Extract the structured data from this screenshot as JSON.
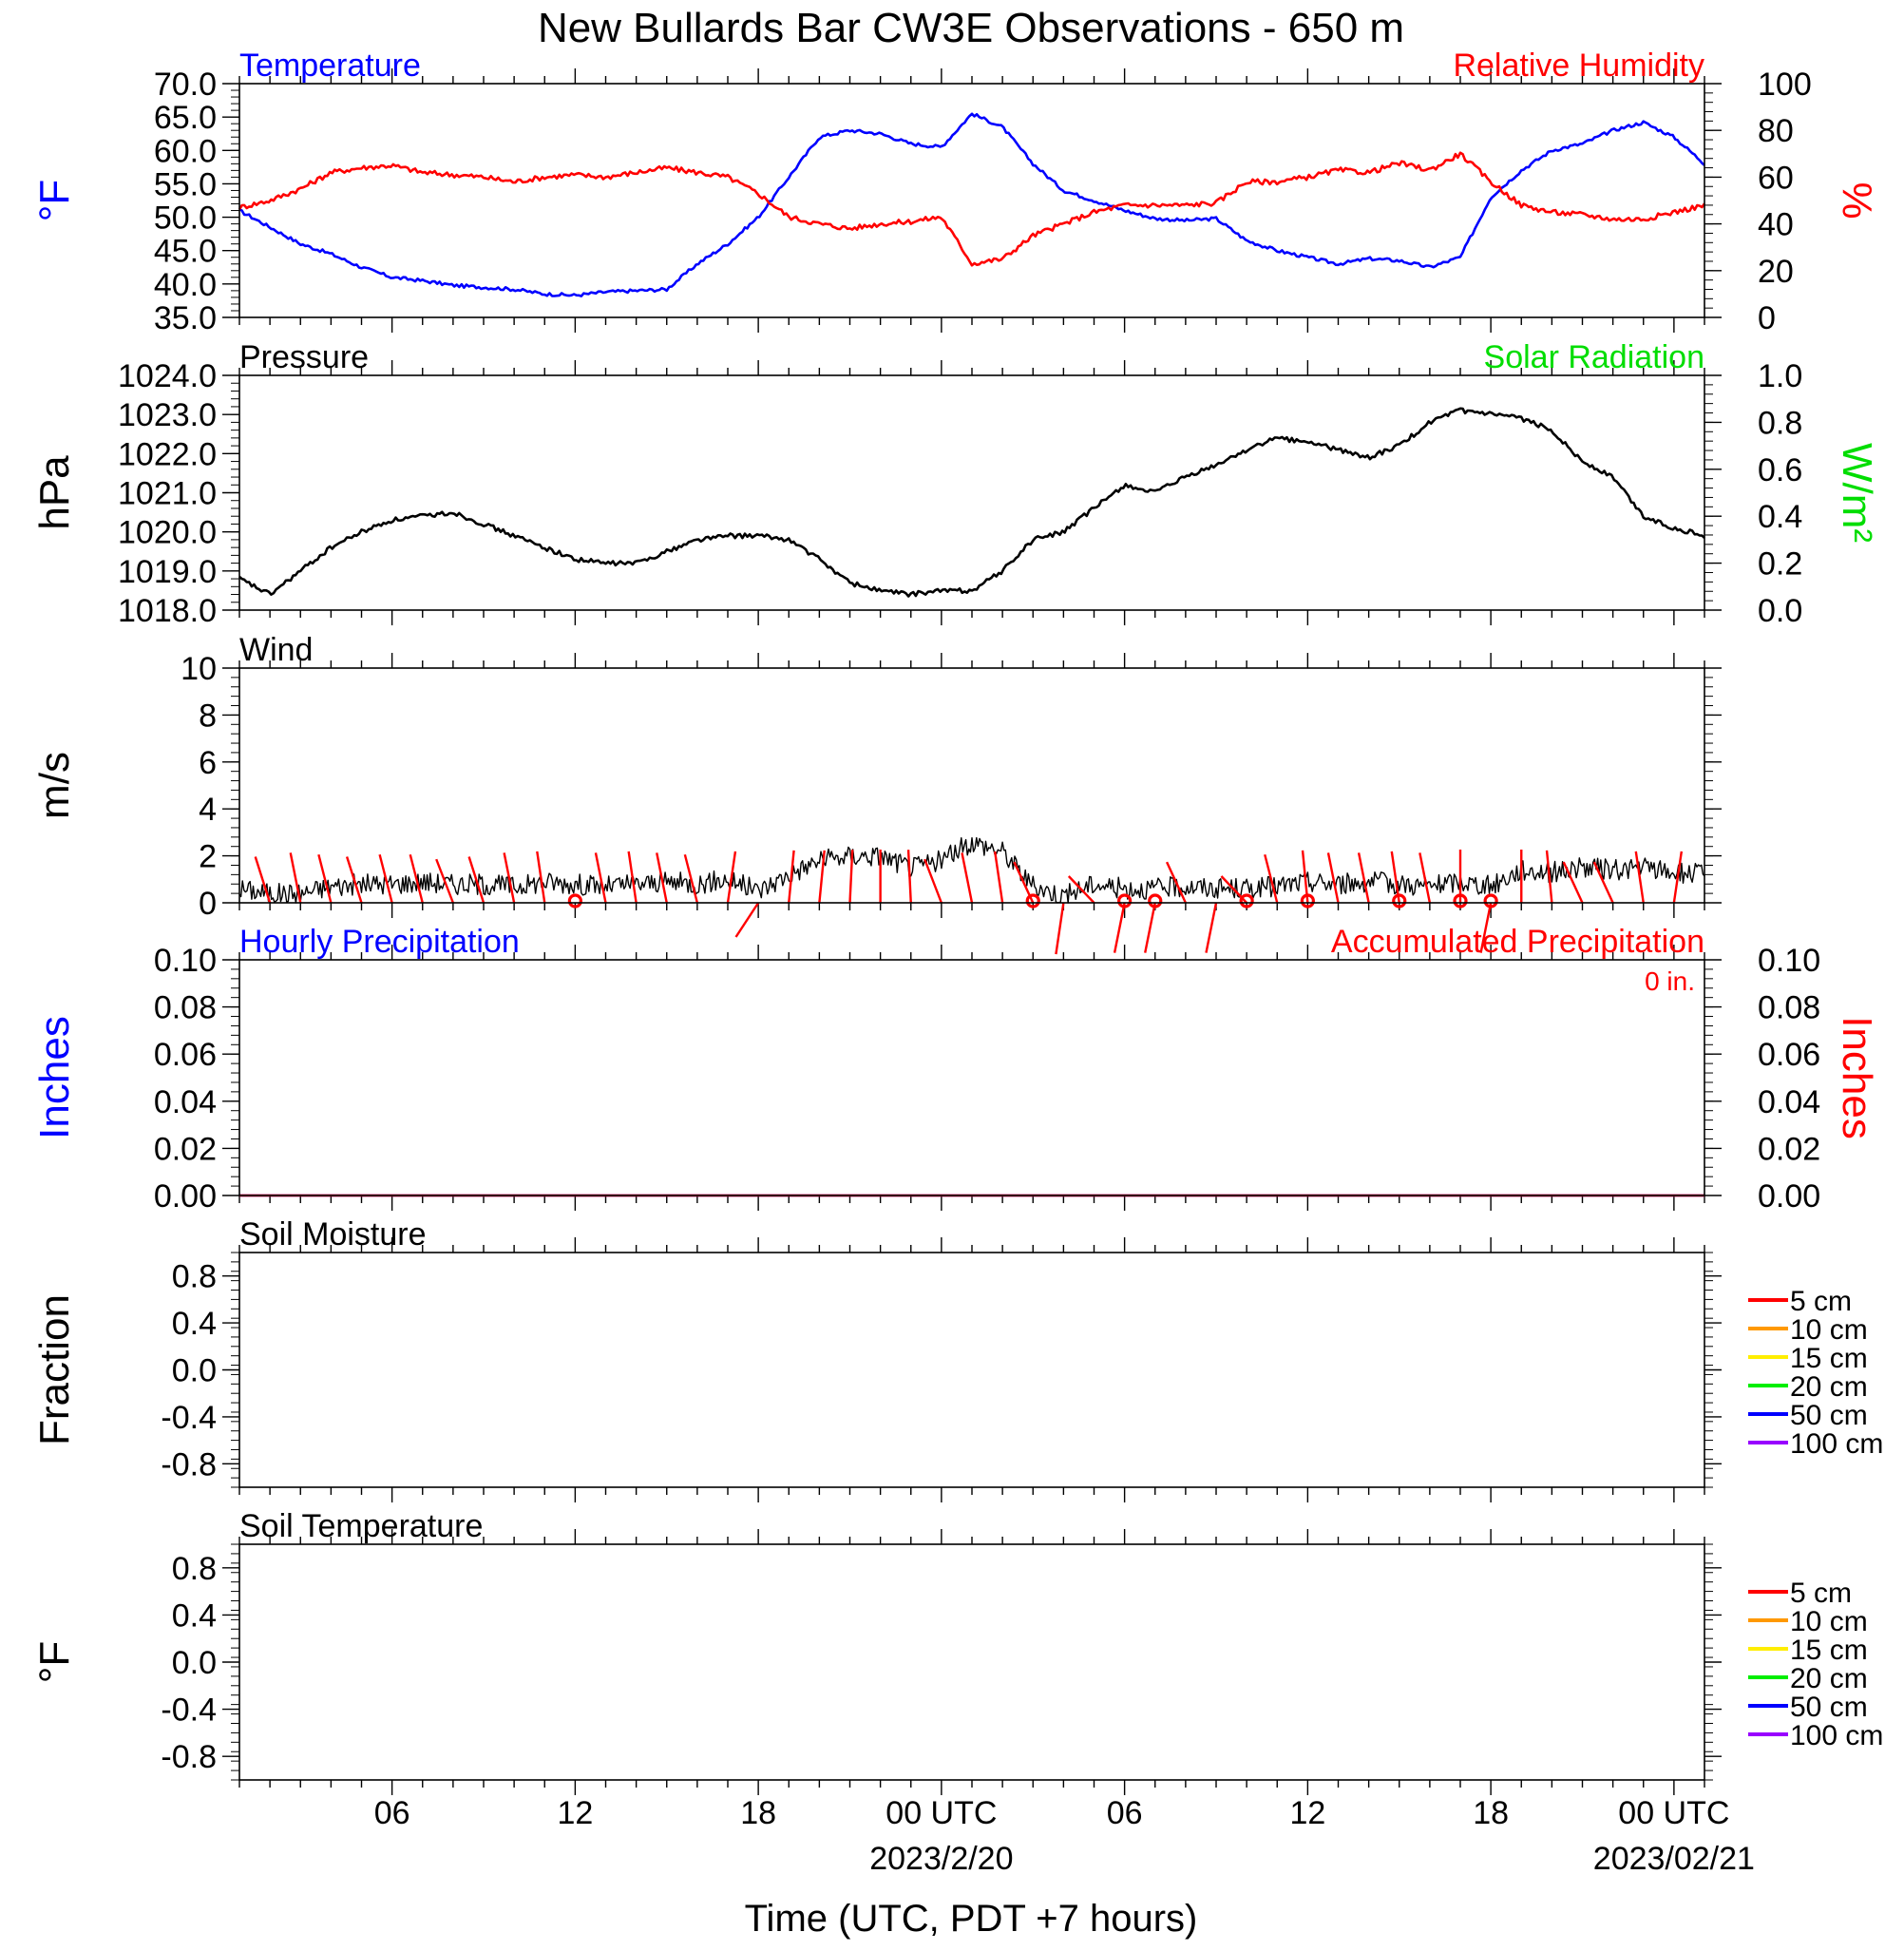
{
  "title": "New Bullards Bar CW3E Observations - 650 m",
  "xlabel": "Time (UTC, PDT +7 hours)",
  "x_ticks": [
    {
      "hour": 6,
      "label": "06"
    },
    {
      "hour": 12,
      "label": "12"
    },
    {
      "hour": 18,
      "label": "18"
    },
    {
      "hour": 24,
      "label": "00 UTC",
      "sub": "2023/2/20"
    },
    {
      "hour": 30,
      "label": "06"
    },
    {
      "hour": 36,
      "label": "12"
    },
    {
      "hour": 42,
      "label": "18"
    },
    {
      "hour": 48,
      "label": "00 UTC",
      "sub": "2023/02/21"
    }
  ],
  "x_range_hours": [
    1,
    49
  ],
  "colors": {
    "temperature": "#0000ff",
    "humidity": "#ff0000",
    "pressure": "#000000",
    "solar": "#00dd00",
    "wind": "#000000",
    "barb": "#ff0000",
    "hourly_precip": "#0000ff",
    "accum_precip": "#ff0000"
  },
  "chart_data": [
    {
      "panel": "temperature_humidity",
      "type": "line",
      "left_title": "Temperature",
      "right_title": "Relative Humidity",
      "ylabel": "°F",
      "ylabel_right": "%",
      "ylim": [
        35,
        70
      ],
      "ylim_right": [
        0,
        100
      ],
      "yticks": [
        "70.0",
        "65.0",
        "60.0",
        "55.0",
        "50.0",
        "45.0",
        "40.0",
        "35.0"
      ],
      "yticks_right": [
        "100",
        "80",
        "60",
        "40",
        "20",
        "0"
      ],
      "series": [
        {
          "name": "Temperature",
          "axis": "left",
          "x": [
            1,
            2,
            3,
            4,
            5,
            6,
            7,
            8,
            9,
            10,
            11,
            12,
            13,
            14,
            15,
            16,
            17,
            18,
            19,
            20,
            21,
            22,
            23,
            24,
            25,
            26,
            27,
            28,
            29,
            30,
            31,
            32,
            33,
            34,
            35,
            36,
            37,
            38,
            39,
            40,
            41,
            42,
            43,
            44,
            45,
            46,
            47,
            48,
            49
          ],
          "values": [
            51,
            48.5,
            46,
            44.5,
            42.5,
            41,
            40.5,
            39.8,
            39.5,
            39.2,
            38.5,
            38.3,
            38.8,
            39,
            39.2,
            43,
            46,
            50,
            56,
            62,
            63,
            62.5,
            61,
            60.5,
            65.5,
            63.5,
            58,
            54,
            52.5,
            51,
            49.8,
            49.5,
            49.8,
            46.5,
            45,
            44,
            43,
            43.8,
            43.5,
            42.5,
            44,
            53,
            57,
            60,
            61,
            63,
            64.2,
            62,
            58
          ]
        },
        {
          "name": "Relative Humidity",
          "axis": "right",
          "x": [
            1,
            2,
            3,
            4,
            5,
            6,
            7,
            8,
            9,
            10,
            11,
            12,
            13,
            14,
            15,
            16,
            17,
            18,
            19,
            20,
            21,
            22,
            23,
            24,
            25,
            26,
            27,
            28,
            29,
            30,
            31,
            32,
            33,
            34,
            35,
            36,
            37,
            38,
            39,
            40,
            41,
            42,
            43,
            44,
            45,
            46,
            47,
            48,
            49
          ],
          "values": [
            47,
            50,
            55,
            62,
            64,
            65,
            62,
            61,
            60,
            58,
            60,
            61,
            60,
            62,
            64,
            62,
            60,
            53,
            43,
            40,
            38,
            40,
            41,
            43,
            23,
            25,
            35,
            40,
            45,
            48,
            48,
            48,
            49,
            58,
            58,
            60,
            63,
            62,
            66,
            63,
            70,
            58,
            48,
            45,
            44,
            42,
            42,
            45,
            48
          ]
        }
      ]
    },
    {
      "panel": "pressure_solar",
      "type": "line",
      "left_title": "Pressure",
      "right_title": "Solar Radiation",
      "ylabel": "hPa",
      "ylabel_right": "W/m²",
      "ylim": [
        1018.0,
        1024.0
      ],
      "ylim_right": [
        0.0,
        1.0
      ],
      "yticks": [
        "1024.0",
        "1023.0",
        "1022.0",
        "1021.0",
        "1020.0",
        "1019.0",
        "1018.0"
      ],
      "yticks_right": [
        "1.0",
        "0.8",
        "0.6",
        "0.4",
        "0.2",
        "0.0"
      ],
      "series": [
        {
          "name": "Pressure",
          "axis": "left",
          "x": [
            1,
            2,
            3,
            4,
            5,
            6,
            7,
            8,
            9,
            10,
            11,
            12,
            13,
            14,
            15,
            16,
            17,
            18,
            19,
            20,
            21,
            22,
            23,
            24,
            25,
            26,
            27,
            28,
            29,
            30,
            31,
            32,
            33,
            34,
            35,
            36,
            37,
            38,
            39,
            40,
            41,
            42,
            43,
            44,
            45,
            46,
            47,
            48,
            49
          ],
          "values": [
            1018.8,
            1018.4,
            1019.0,
            1019.6,
            1020.0,
            1020.3,
            1020.4,
            1020.5,
            1020.2,
            1019.9,
            1019.6,
            1019.3,
            1019.2,
            1019.2,
            1019.5,
            1019.8,
            1019.9,
            1019.9,
            1019.8,
            1019.3,
            1018.7,
            1018.5,
            1018.4,
            1018.5,
            1018.5,
            1019.0,
            1019.8,
            1020.0,
            1020.6,
            1021.2,
            1021.0,
            1021.4,
            1021.7,
            1022.1,
            1022.4,
            1022.3,
            1022.1,
            1021.9,
            1022.2,
            1022.8,
            1023.1,
            1023.0,
            1022.9,
            1022.6,
            1021.8,
            1021.4,
            1020.4,
            1020.1,
            1019.9
          ]
        }
      ]
    },
    {
      "panel": "wind",
      "type": "line",
      "left_title": "Wind",
      "ylabel": "m/s",
      "ylim": [
        0,
        10
      ],
      "yticks": [
        "10",
        "8",
        "6",
        "4",
        "2",
        "0"
      ],
      "series": [
        {
          "name": "Wind speed",
          "axis": "left",
          "x": [
            1,
            2,
            3,
            4,
            5,
            6,
            7,
            8,
            9,
            10,
            11,
            12,
            13,
            14,
            15,
            16,
            17,
            18,
            19,
            20,
            21,
            22,
            23,
            24,
            25,
            26,
            27,
            28,
            29,
            30,
            31,
            32,
            33,
            34,
            35,
            36,
            37,
            38,
            39,
            40,
            41,
            42,
            43,
            44,
            45,
            46,
            47,
            48,
            49
          ],
          "values": [
            0.6,
            0.4,
            0.4,
            0.7,
            0.8,
            0.8,
            0.9,
            0.8,
            0.8,
            0.7,
            0.9,
            0.8,
            0.7,
            0.8,
            0.9,
            0.8,
            1.0,
            0.5,
            1.2,
            1.8,
            2.0,
            2.0,
            1.5,
            1.8,
            2.6,
            2.2,
            0.7,
            0.3,
            0.8,
            0.6,
            0.6,
            0.7,
            0.6,
            0.6,
            0.7,
            0.9,
            0.8,
            0.9,
            0.8,
            0.7,
            0.9,
            0.7,
            1.4,
            1.3,
            1.5,
            1.4,
            1.5,
            1.3,
            1.2
          ]
        },
        {
          "name": "Barbs",
          "type": "barbs",
          "hours": [
            2,
            3,
            4,
            5,
            6,
            7,
            8,
            9,
            10,
            11,
            13,
            14,
            15,
            16,
            17,
            18,
            19,
            20,
            21,
            22,
            23,
            24,
            25,
            26,
            27,
            28,
            29,
            30,
            31,
            32,
            33,
            34,
            35,
            36,
            37,
            38,
            39,
            40,
            41,
            42,
            43,
            44,
            45,
            46,
            47,
            48
          ],
          "dirs_deg": [
            330,
            340,
            335,
            330,
            335,
            335,
            325,
            330,
            340,
            345,
            340,
            345,
            340,
            335,
            15,
            230,
            10,
            10,
            5,
            0,
            355,
            325,
            340,
            345,
            320,
            195,
            300,
            200,
            200,
            320,
            200,
            300,
            335,
            350,
            340,
            340,
            345,
            340,
            0,
            200,
            0,
            350,
            320,
            320,
            345,
            15
          ],
          "calm_hours": [
            12,
            27,
            30,
            31,
            34,
            36,
            39,
            41,
            42
          ]
        }
      ]
    },
    {
      "panel": "precipitation",
      "type": "line",
      "left_title": "Hourly Precipitation",
      "right_title": "Accumulated Precipitation",
      "annotation": "0 in.",
      "ylabel": "Inches",
      "ylabel_right": "Inches",
      "ylim": [
        0,
        0.1
      ],
      "ylim_right": [
        0,
        0.1
      ],
      "yticks": [
        "0.10",
        "0.08",
        "0.06",
        "0.04",
        "0.02",
        "0.00"
      ],
      "yticks_right": [
        "0.10",
        "0.08",
        "0.06",
        "0.04",
        "0.02",
        "0.00"
      ],
      "series": [
        {
          "name": "Hourly Precipitation",
          "axis": "left",
          "x": [
            1,
            49
          ],
          "values": [
            0,
            0
          ]
        },
        {
          "name": "Accumulated Precipitation",
          "axis": "right",
          "x": [
            1,
            49
          ],
          "values": [
            0,
            0
          ]
        }
      ]
    },
    {
      "panel": "soil_moisture",
      "type": "line",
      "left_title": "Soil Moisture",
      "ylabel": "Fraction",
      "ylim": [
        -1,
        1
      ],
      "yticks": [
        "0.8",
        "0.4",
        "0.0",
        "-0.4",
        "-0.8"
      ],
      "legend": [
        {
          "label": "5 cm",
          "color": "#ff0000"
        },
        {
          "label": "10 cm",
          "color": "#ff9900"
        },
        {
          "label": "15 cm",
          "color": "#ffee00"
        },
        {
          "label": "20 cm",
          "color": "#00ee00"
        },
        {
          "label": "50 cm",
          "color": "#0000ff"
        },
        {
          "label": "100 cm",
          "color": "#9900ff"
        }
      ],
      "series": []
    },
    {
      "panel": "soil_temperature",
      "type": "line",
      "left_title": "Soil Temperature",
      "ylabel": "°F",
      "ylim": [
        -1,
        1
      ],
      "yticks": [
        "0.8",
        "0.4",
        "0.0",
        "-0.4",
        "-0.8"
      ],
      "legend": [
        {
          "label": "5 cm",
          "color": "#ff0000"
        },
        {
          "label": "10 cm",
          "color": "#ff9900"
        },
        {
          "label": "15 cm",
          "color": "#ffee00"
        },
        {
          "label": "20 cm",
          "color": "#00ee00"
        },
        {
          "label": "50 cm",
          "color": "#0000ff"
        },
        {
          "label": "100 cm",
          "color": "#9900ff"
        }
      ],
      "series": []
    }
  ]
}
